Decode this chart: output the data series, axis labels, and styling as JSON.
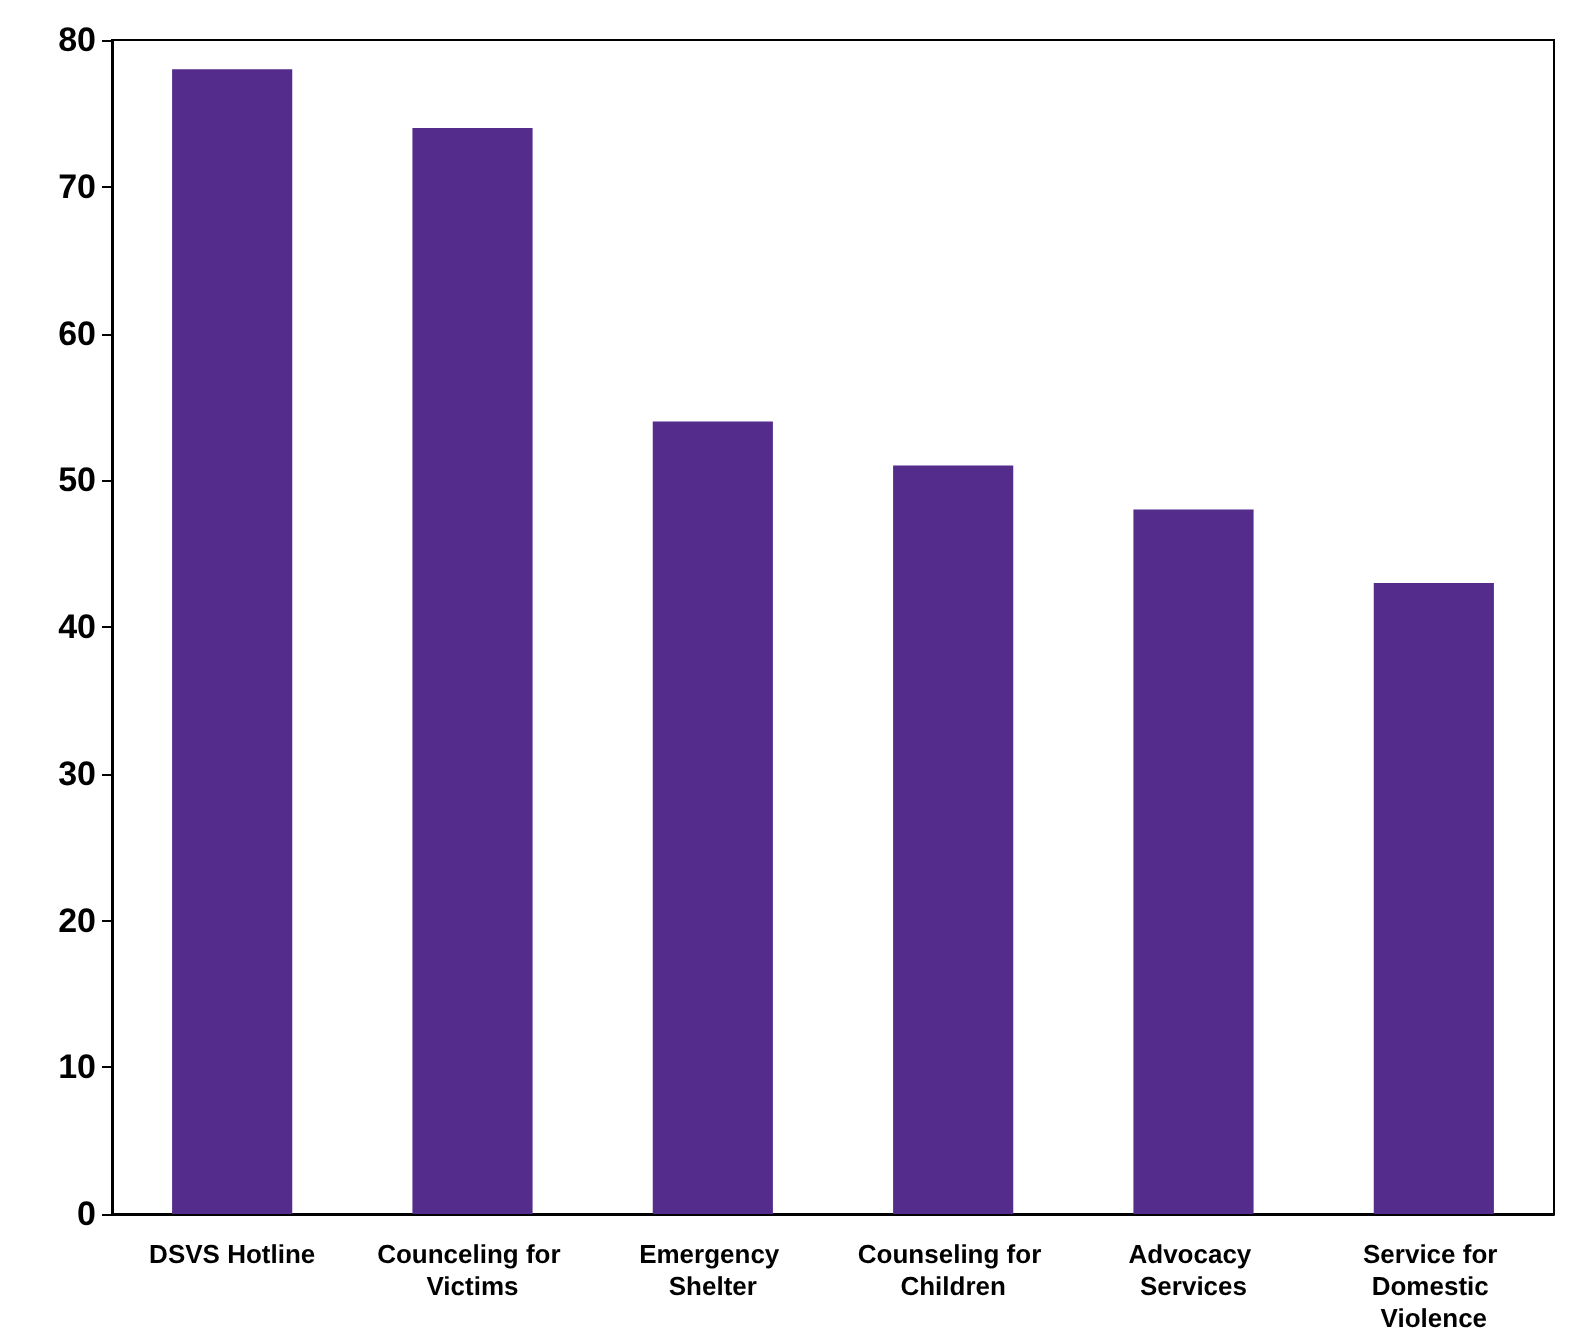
{
  "chart_data": {
    "type": "bar",
    "categories": [
      "DSVS Hotline",
      "Counceling for Victims",
      "Emergency Shelter",
      "Counseling for Children",
      "Advocacy Services",
      "Service for Domestic Violence"
    ],
    "values": [
      78,
      74,
      54,
      51,
      48,
      43
    ],
    "color": "#542d8c",
    "ylim": [
      0,
      80
    ],
    "yticks": [
      0,
      10,
      20,
      30,
      40,
      50,
      60,
      70,
      80
    ],
    "grid": false
  }
}
